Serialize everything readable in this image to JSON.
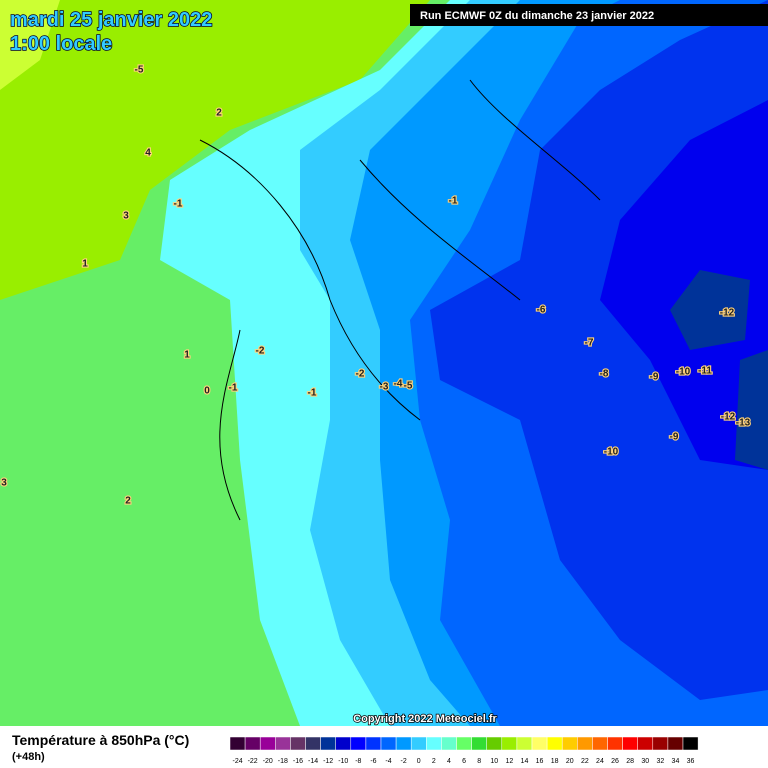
{
  "header": {
    "title": "mardi 25 janvier 2022",
    "time": "1:00 locale",
    "run": "Run ECMWF 0Z du dimanche 23 janvier 2022"
  },
  "copyright": "Copyright 2022 Meteociel.fr",
  "legend": {
    "title": "Température à 850hPa (°C)",
    "subtitle": "(+48h)",
    "ticks": [
      -24,
      -22,
      -20,
      -18,
      -16,
      -14,
      -12,
      -10,
      -8,
      -6,
      -4,
      -2,
      0,
      2,
      4,
      6,
      8,
      10,
      12,
      14,
      16,
      18,
      20,
      22,
      24,
      26,
      28,
      30,
      32,
      34,
      36
    ],
    "colors": [
      "#330033",
      "#660066",
      "#990099",
      "#993399",
      "#663366",
      "#333366",
      "#003399",
      "#0000cc",
      "#0000ff",
      "#0033ff",
      "#0066ff",
      "#0099ff",
      "#33ccff",
      "#66ffff",
      "#66ffcc",
      "#66ff66",
      "#33dd33",
      "#66cc00",
      "#99ee00",
      "#ccff33",
      "#ffff66",
      "#ffff00",
      "#ffcc00",
      "#ff9900",
      "#ff6600",
      "#ff3300",
      "#ff0000",
      "#cc0000",
      "#990000",
      "#660000",
      "#000000"
    ]
  },
  "contour_labels": [
    -5,
    2,
    4,
    3,
    -1,
    1,
    -1,
    -2,
    1,
    -1,
    0,
    -1,
    2,
    3,
    -2,
    -3,
    -4,
    -5,
    -6,
    -7,
    -8,
    -9,
    -10,
    -11,
    -12,
    -12,
    -13,
    -9,
    -10
  ]
}
